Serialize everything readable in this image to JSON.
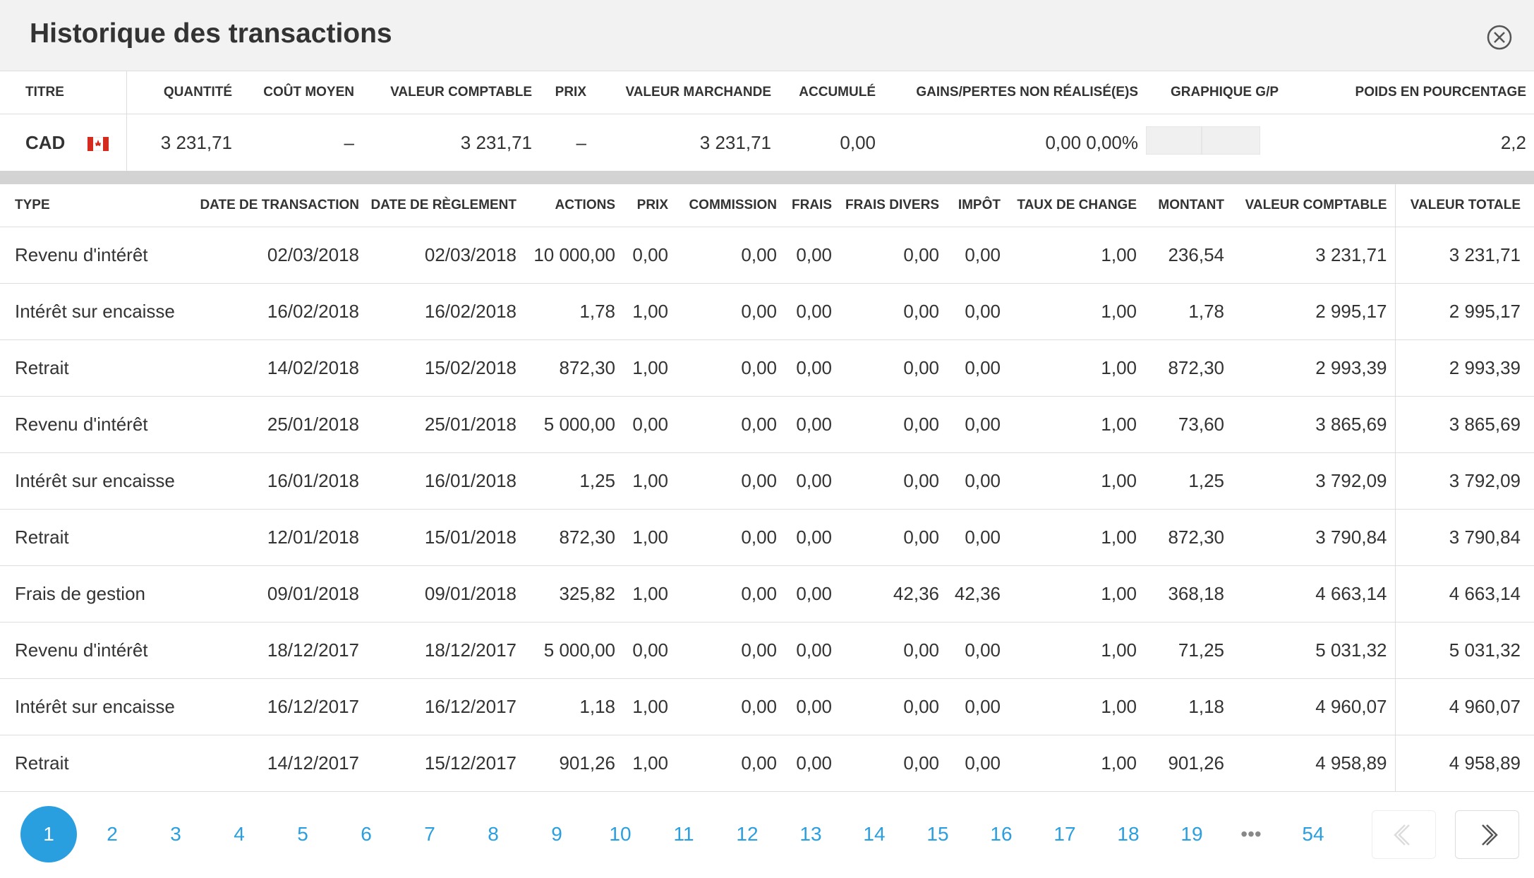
{
  "header": {
    "title": "Historique des transactions"
  },
  "summary": {
    "headers": [
      "TITRE",
      "QUANTITÉ",
      "COÛT MOYEN",
      "VALEUR COMPTABLE",
      "PRIX",
      "VALEUR MARCHANDE",
      "ACCUMULÉ",
      "GAINS/PERTES NON RÉALISÉ(E)S",
      "GRAPHIQUE G/P",
      "POIDS EN POURCENTAGE"
    ],
    "row": [
      "CAD",
      "3 231,71",
      "–",
      "3 231,71",
      "–",
      "3 231,71",
      "0,00",
      "0,00 0,00%",
      "",
      "2,2"
    ]
  },
  "transactions": {
    "headers": [
      "TYPE",
      "DATE DE TRANSACTION",
      "DATE DE RÈGLEMENT",
      "ACTIONS",
      "PRIX",
      "COMMISSION",
      "FRAIS",
      "FRAIS DIVERS",
      "IMPÔT",
      "TAUX DE CHANGE",
      "MONTANT",
      "VALEUR COMPTABLE",
      "VALEUR TOTALE"
    ],
    "rows": [
      [
        "Revenu d'intérêt",
        "02/03/2018",
        "02/03/2018",
        "10 000,00",
        "0,00",
        "0,00",
        "0,00",
        "0,00",
        "0,00",
        "1,00",
        "236,54",
        "3 231,71",
        "3 231,71"
      ],
      [
        "Intérêt sur encaisse",
        "16/02/2018",
        "16/02/2018",
        "1,78",
        "1,00",
        "0,00",
        "0,00",
        "0,00",
        "0,00",
        "1,00",
        "1,78",
        "2 995,17",
        "2 995,17"
      ],
      [
        "Retrait",
        "14/02/2018",
        "15/02/2018",
        "872,30",
        "1,00",
        "0,00",
        "0,00",
        "0,00",
        "0,00",
        "1,00",
        "872,30",
        "2 993,39",
        "2 993,39"
      ],
      [
        "Revenu d'intérêt",
        "25/01/2018",
        "25/01/2018",
        "5 000,00",
        "0,00",
        "0,00",
        "0,00",
        "0,00",
        "0,00",
        "1,00",
        "73,60",
        "3 865,69",
        "3 865,69"
      ],
      [
        "Intérêt sur encaisse",
        "16/01/2018",
        "16/01/2018",
        "1,25",
        "1,00",
        "0,00",
        "0,00",
        "0,00",
        "0,00",
        "1,00",
        "1,25",
        "3 792,09",
        "3 792,09"
      ],
      [
        "Retrait",
        "12/01/2018",
        "15/01/2018",
        "872,30",
        "1,00",
        "0,00",
        "0,00",
        "0,00",
        "0,00",
        "1,00",
        "872,30",
        "3 790,84",
        "3 790,84"
      ],
      [
        "Frais de gestion",
        "09/01/2018",
        "09/01/2018",
        "325,82",
        "1,00",
        "0,00",
        "0,00",
        "42,36",
        "42,36",
        "1,00",
        "368,18",
        "4 663,14",
        "4 663,14"
      ],
      [
        "Revenu d'intérêt",
        "18/12/2017",
        "18/12/2017",
        "5 000,00",
        "0,00",
        "0,00",
        "0,00",
        "0,00",
        "0,00",
        "1,00",
        "71,25",
        "5 031,32",
        "5 031,32"
      ],
      [
        "Intérêt sur encaisse",
        "16/12/2017",
        "16/12/2017",
        "1,18",
        "1,00",
        "0,00",
        "0,00",
        "0,00",
        "0,00",
        "1,00",
        "1,18",
        "4 960,07",
        "4 960,07"
      ],
      [
        "Retrait",
        "14/12/2017",
        "15/12/2017",
        "901,26",
        "1,00",
        "0,00",
        "0,00",
        "0,00",
        "0,00",
        "1,00",
        "901,26",
        "4 958,89",
        "4 958,89"
      ]
    ]
  },
  "pagination": {
    "pages": [
      "1",
      "2",
      "3",
      "4",
      "5",
      "6",
      "7",
      "8",
      "9",
      "10",
      "11",
      "12",
      "13",
      "14",
      "15",
      "16",
      "17",
      "18",
      "19"
    ],
    "ellipsis": "•••",
    "last": "54"
  }
}
